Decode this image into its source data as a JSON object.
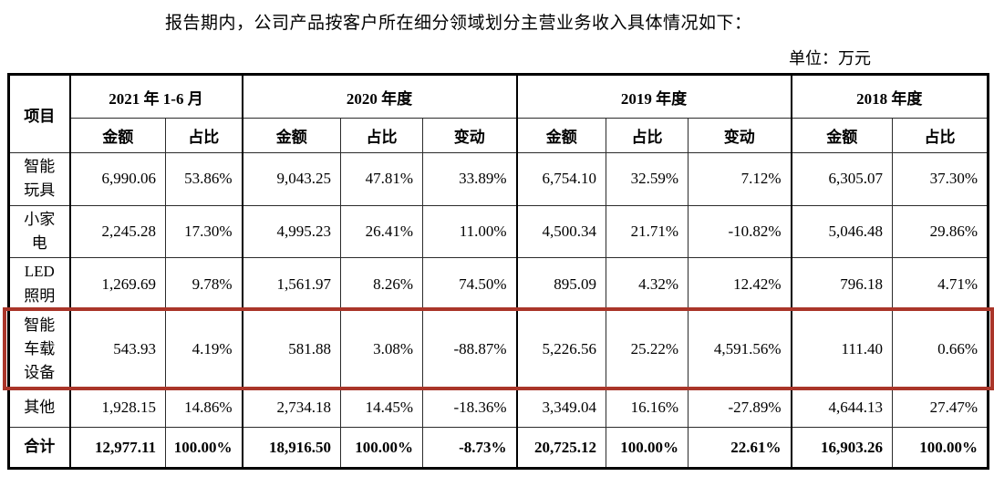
{
  "title": "报告期内，公司产品按客户所在细分领域划分主营业务收入具体情况如下：",
  "unit_label": "单位：万元",
  "table": {
    "item_header": "项目",
    "groups": [
      {
        "label": "2021 年 1-6 月",
        "cols": [
          "金额",
          "占比"
        ]
      },
      {
        "label": "2020 年度",
        "cols": [
          "金额",
          "占比",
          "变动"
        ]
      },
      {
        "label": "2019 年度",
        "cols": [
          "金额",
          "占比",
          "变动"
        ]
      },
      {
        "label": "2018 年度",
        "cols": [
          "金额",
          "占比"
        ]
      }
    ],
    "highlight_row_index": 3,
    "highlight_color": "#aa3529",
    "rows": [
      {
        "label": "智能\n玩具",
        "bold": false,
        "values": [
          "6,990.06",
          "53.86%",
          "9,043.25",
          "47.81%",
          "33.89%",
          "6,754.10",
          "32.59%",
          "7.12%",
          "6,305.07",
          "37.30%"
        ]
      },
      {
        "label": "小家\n电",
        "bold": false,
        "values": [
          "2,245.28",
          "17.30%",
          "4,995.23",
          "26.41%",
          "11.00%",
          "4,500.34",
          "21.71%",
          "-10.82%",
          "5,046.48",
          "29.86%"
        ]
      },
      {
        "label": "LED\n照明",
        "bold": false,
        "values": [
          "1,269.69",
          "9.78%",
          "1,561.97",
          "8.26%",
          "74.50%",
          "895.09",
          "4.32%",
          "12.42%",
          "796.18",
          "4.71%"
        ]
      },
      {
        "label": "智能\n车载\n设备",
        "bold": false,
        "values": [
          "543.93",
          "4.19%",
          "581.88",
          "3.08%",
          "-88.87%",
          "5,226.56",
          "25.22%",
          "4,591.56%",
          "111.40",
          "0.66%"
        ]
      },
      {
        "label": "其他",
        "bold": false,
        "values": [
          "1,928.15",
          "14.86%",
          "2,734.18",
          "14.45%",
          "-18.36%",
          "3,349.04",
          "16.16%",
          "-27.89%",
          "4,644.13",
          "27.47%"
        ]
      },
      {
        "label": "合计",
        "bold": true,
        "values": [
          "12,977.11",
          "100.00%",
          "18,916.50",
          "100.00%",
          "-8.73%",
          "20,725.12",
          "100.00%",
          "22.61%",
          "16,903.26",
          "100.00%"
        ]
      }
    ]
  }
}
